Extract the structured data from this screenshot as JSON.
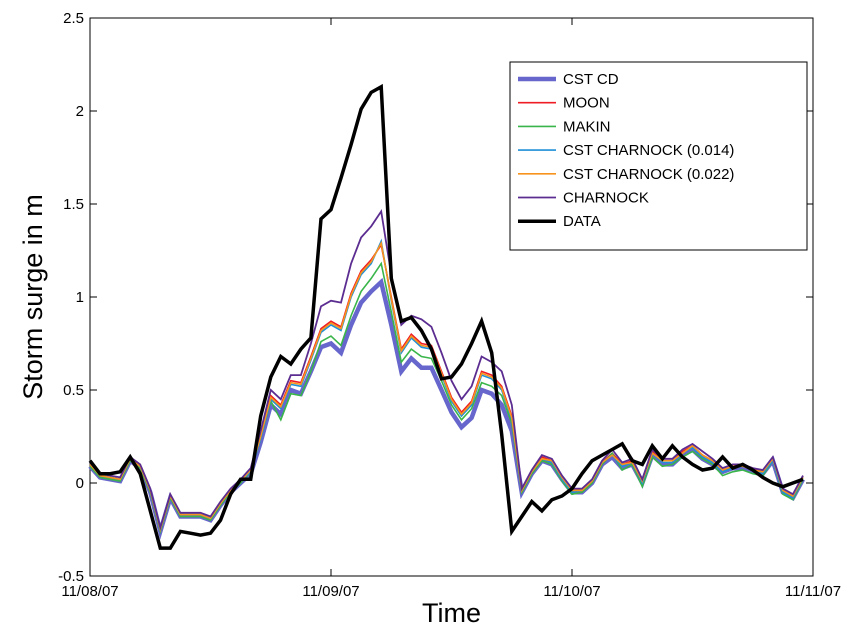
{
  "chart_data": {
    "type": "line",
    "title": "",
    "xlabel": "Time",
    "ylabel": "Storm surge in m",
    "x_ticks": [
      "11/08/07",
      "11/09/07",
      "11/10/07",
      "11/11/07"
    ],
    "y_ticks": [
      "-0.5",
      "0",
      "0.5",
      "1",
      "1.5",
      "2",
      "2.5"
    ],
    "xlim": [
      0,
      72
    ],
    "ylim": [
      -0.5,
      2.5
    ],
    "x_unit": "hours since 11/08/07 00:00",
    "grid": false,
    "legend_position": "top-right",
    "series": [
      {
        "name": "CST CD",
        "color": "#6666cc",
        "width": 4.5,
        "x": [
          0,
          1,
          2,
          3,
          4,
          5,
          6,
          7,
          8,
          9,
          10,
          11,
          12,
          13,
          14,
          15,
          16,
          17,
          18,
          19,
          20,
          21,
          22,
          23,
          24,
          25,
          26,
          27,
          28,
          29,
          30,
          31,
          32,
          33,
          34,
          35,
          36,
          37,
          38,
          39,
          40,
          41,
          42,
          43,
          44,
          45,
          46,
          47,
          48,
          49,
          50,
          51,
          52,
          53,
          54,
          55,
          56,
          57,
          58,
          59,
          60,
          61,
          62,
          63,
          64,
          65,
          66,
          67,
          68,
          69,
          70,
          71
        ],
        "values": [
          0.09,
          0.03,
          0.02,
          0.01,
          0.12,
          0.08,
          -0.05,
          -0.26,
          -0.08,
          -0.18,
          -0.18,
          -0.18,
          -0.2,
          -0.12,
          -0.05,
          0.0,
          0.05,
          0.22,
          0.42,
          0.37,
          0.5,
          0.48,
          0.6,
          0.73,
          0.75,
          0.7,
          0.85,
          0.97,
          1.03,
          1.08,
          0.85,
          0.6,
          0.67,
          0.62,
          0.62,
          0.5,
          0.38,
          0.3,
          0.35,
          0.5,
          0.48,
          0.42,
          0.28,
          -0.05,
          0.05,
          0.12,
          0.1,
          0.02,
          -0.05,
          -0.05,
          0.0,
          0.1,
          0.14,
          0.08,
          0.1,
          0.0,
          0.15,
          0.1,
          0.1,
          0.15,
          0.18,
          0.13,
          0.1,
          0.06,
          0.08,
          0.08,
          0.06,
          0.05,
          0.12,
          -0.05,
          -0.08,
          0.02
        ]
      },
      {
        "name": "MOON",
        "color": "#ee1c24",
        "width": 1.6,
        "x": [
          0,
          1,
          2,
          3,
          4,
          5,
          6,
          7,
          8,
          9,
          10,
          11,
          12,
          13,
          14,
          15,
          16,
          17,
          18,
          19,
          20,
          21,
          22,
          23,
          24,
          25,
          26,
          27,
          28,
          29,
          30,
          31,
          32,
          33,
          34,
          35,
          36,
          37,
          38,
          39,
          40,
          41,
          42,
          43,
          44,
          45,
          46,
          47,
          48,
          49,
          50,
          51,
          52,
          53,
          54,
          55,
          56,
          57,
          58,
          59,
          60,
          61,
          62,
          63,
          64,
          65,
          66,
          67,
          68,
          69,
          70,
          71
        ],
        "values": [
          0.1,
          0.04,
          0.03,
          0.02,
          0.13,
          0.09,
          -0.04,
          -0.25,
          -0.07,
          -0.17,
          -0.17,
          -0.17,
          -0.19,
          -0.11,
          -0.04,
          0.01,
          0.07,
          0.26,
          0.47,
          0.42,
          0.55,
          0.54,
          0.68,
          0.83,
          0.87,
          0.84,
          1.02,
          1.14,
          1.2,
          1.28,
          1.0,
          0.72,
          0.8,
          0.75,
          0.74,
          0.6,
          0.46,
          0.38,
          0.44,
          0.6,
          0.58,
          0.52,
          0.36,
          -0.04,
          0.06,
          0.14,
          0.12,
          0.03,
          -0.04,
          -0.04,
          0.01,
          0.11,
          0.16,
          0.1,
          0.12,
          0.01,
          0.17,
          0.12,
          0.12,
          0.17,
          0.2,
          0.15,
          0.12,
          0.07,
          0.09,
          0.1,
          0.08,
          0.06,
          0.13,
          -0.04,
          -0.07,
          0.03
        ]
      },
      {
        "name": "MAKIN",
        "color": "#39b54a",
        "width": 1.6,
        "x": [
          0,
          1,
          2,
          3,
          4,
          5,
          6,
          7,
          8,
          9,
          10,
          11,
          12,
          13,
          14,
          15,
          16,
          17,
          18,
          19,
          20,
          21,
          22,
          23,
          24,
          25,
          26,
          27,
          28,
          29,
          30,
          31,
          32,
          33,
          34,
          35,
          36,
          37,
          38,
          39,
          40,
          41,
          42,
          43,
          44,
          45,
          46,
          47,
          48,
          49,
          50,
          51,
          52,
          53,
          54,
          55,
          56,
          57,
          58,
          59,
          60,
          61,
          62,
          63,
          64,
          65,
          66,
          67,
          68,
          69,
          70,
          71
        ],
        "values": [
          0.09,
          0.03,
          0.02,
          0.01,
          0.12,
          0.08,
          -0.05,
          -0.26,
          -0.08,
          -0.18,
          -0.18,
          -0.18,
          -0.2,
          -0.12,
          -0.05,
          0.0,
          0.06,
          0.24,
          0.44,
          0.34,
          0.48,
          0.47,
          0.6,
          0.76,
          0.79,
          0.74,
          0.9,
          1.03,
          1.1,
          1.18,
          0.92,
          0.65,
          0.72,
          0.68,
          0.67,
          0.55,
          0.42,
          0.34,
          0.4,
          0.54,
          0.52,
          0.47,
          0.32,
          -0.05,
          0.05,
          0.12,
          0.1,
          0.01,
          -0.06,
          -0.05,
          0.0,
          0.1,
          0.16,
          0.07,
          0.1,
          -0.02,
          0.14,
          0.09,
          0.1,
          0.14,
          0.17,
          0.13,
          0.1,
          0.04,
          0.06,
          0.07,
          0.05,
          0.04,
          0.12,
          -0.06,
          -0.09,
          0.02
        ]
      },
      {
        "name": "CST CHARNOCK (0.014)",
        "color": "#1f8fd6",
        "width": 1.6,
        "x": [
          0,
          1,
          2,
          3,
          4,
          5,
          6,
          7,
          8,
          9,
          10,
          11,
          12,
          13,
          14,
          15,
          16,
          17,
          18,
          19,
          20,
          21,
          22,
          23,
          24,
          25,
          26,
          27,
          28,
          29,
          30,
          31,
          32,
          33,
          34,
          35,
          36,
          37,
          38,
          39,
          40,
          41,
          42,
          43,
          44,
          45,
          46,
          47,
          48,
          49,
          50,
          51,
          52,
          53,
          54,
          55,
          56,
          57,
          58,
          59,
          60,
          61,
          62,
          63,
          64,
          65,
          66,
          67,
          68,
          69,
          70,
          71
        ],
        "values": [
          0.1,
          0.04,
          0.03,
          0.02,
          0.13,
          0.09,
          -0.04,
          -0.25,
          -0.07,
          -0.17,
          -0.17,
          -0.17,
          -0.19,
          -0.11,
          -0.04,
          0.01,
          0.06,
          0.24,
          0.45,
          0.4,
          0.53,
          0.52,
          0.66,
          0.81,
          0.85,
          0.82,
          1.0,
          1.12,
          1.18,
          1.3,
          0.98,
          0.7,
          0.78,
          0.73,
          0.72,
          0.58,
          0.44,
          0.36,
          0.42,
          0.58,
          0.56,
          0.5,
          0.34,
          -0.04,
          0.06,
          0.13,
          0.11,
          0.02,
          -0.05,
          -0.04,
          0.01,
          0.11,
          0.15,
          0.09,
          0.11,
          0.0,
          0.16,
          0.11,
          0.11,
          0.16,
          0.19,
          0.14,
          0.11,
          0.06,
          0.08,
          0.09,
          0.07,
          0.05,
          0.12,
          -0.05,
          -0.08,
          0.03
        ]
      },
      {
        "name": "CST CHARNOCK (0.022)",
        "color": "#f7941d",
        "width": 1.6,
        "x": [
          0,
          1,
          2,
          3,
          4,
          5,
          6,
          7,
          8,
          9,
          10,
          11,
          12,
          13,
          14,
          15,
          16,
          17,
          18,
          19,
          20,
          21,
          22,
          23,
          24,
          25,
          26,
          27,
          28,
          29,
          30,
          31,
          32,
          33,
          34,
          35,
          36,
          37,
          38,
          39,
          40,
          41,
          42,
          43,
          44,
          45,
          46,
          47,
          48,
          49,
          50,
          51,
          52,
          53,
          54,
          55,
          56,
          57,
          58,
          59,
          60,
          61,
          62,
          63,
          64,
          65,
          66,
          67,
          68,
          69,
          70,
          71
        ],
        "values": [
          0.1,
          0.04,
          0.03,
          0.02,
          0.13,
          0.09,
          -0.04,
          -0.25,
          -0.07,
          -0.17,
          -0.17,
          -0.17,
          -0.19,
          -0.11,
          -0.04,
          0.01,
          0.07,
          0.25,
          0.46,
          0.41,
          0.54,
          0.53,
          0.67,
          0.82,
          0.86,
          0.83,
          1.01,
          1.13,
          1.19,
          1.29,
          0.99,
          0.71,
          0.79,
          0.74,
          0.73,
          0.59,
          0.45,
          0.37,
          0.43,
          0.59,
          0.57,
          0.51,
          0.35,
          -0.04,
          0.06,
          0.13,
          0.12,
          0.03,
          -0.04,
          -0.04,
          0.01,
          0.11,
          0.15,
          0.1,
          0.11,
          0.01,
          0.16,
          0.12,
          0.12,
          0.16,
          0.2,
          0.15,
          0.12,
          0.07,
          0.09,
          0.09,
          0.07,
          0.06,
          0.13,
          -0.04,
          -0.07,
          0.03
        ]
      },
      {
        "name": "CHARNOCK",
        "color": "#5c2d91",
        "width": 1.8,
        "x": [
          0,
          1,
          2,
          3,
          4,
          5,
          6,
          7,
          8,
          9,
          10,
          11,
          12,
          13,
          14,
          15,
          16,
          17,
          18,
          19,
          20,
          21,
          22,
          23,
          24,
          25,
          26,
          27,
          28,
          29,
          30,
          31,
          32,
          33,
          34,
          35,
          36,
          37,
          38,
          39,
          40,
          41,
          42,
          43,
          44,
          45,
          46,
          47,
          48,
          49,
          50,
          51,
          52,
          53,
          54,
          55,
          56,
          57,
          58,
          59,
          60,
          61,
          62,
          63,
          64,
          65,
          66,
          67,
          68,
          69,
          70,
          71
        ],
        "values": [
          0.11,
          0.05,
          0.04,
          0.03,
          0.14,
          0.1,
          -0.03,
          -0.24,
          -0.06,
          -0.16,
          -0.16,
          -0.16,
          -0.18,
          -0.1,
          -0.03,
          0.02,
          0.08,
          0.28,
          0.5,
          0.45,
          0.58,
          0.58,
          0.75,
          0.95,
          0.98,
          0.97,
          1.18,
          1.32,
          1.38,
          1.46,
          1.12,
          0.85,
          0.9,
          0.88,
          0.84,
          0.7,
          0.55,
          0.45,
          0.52,
          0.68,
          0.65,
          0.6,
          0.42,
          -0.03,
          0.07,
          0.15,
          0.13,
          0.04,
          -0.03,
          -0.03,
          0.02,
          0.12,
          0.18,
          0.11,
          0.13,
          0.02,
          0.18,
          0.13,
          0.13,
          0.18,
          0.21,
          0.17,
          0.13,
          0.08,
          0.1,
          0.1,
          0.08,
          0.07,
          0.14,
          -0.03,
          -0.06,
          0.04
        ]
      },
      {
        "name": "DATA",
        "color": "#000000",
        "width": 3.5,
        "x": [
          0,
          1,
          2,
          3,
          4,
          5,
          6,
          7,
          8,
          9,
          10,
          11,
          12,
          13,
          14,
          15,
          16,
          17,
          18,
          19,
          20,
          21,
          22,
          23,
          24,
          25,
          26,
          27,
          28,
          29,
          30,
          31,
          32,
          33,
          34,
          35,
          36,
          37,
          38,
          39,
          40,
          41,
          42,
          43,
          44,
          45,
          46,
          47,
          48,
          49,
          50,
          51,
          52,
          53,
          54,
          55,
          56,
          57,
          58,
          59,
          60,
          61,
          62,
          63,
          64,
          65,
          66,
          67,
          68,
          69,
          70,
          71
        ],
        "values": [
          0.12,
          0.05,
          0.05,
          0.06,
          0.14,
          0.05,
          -0.15,
          -0.35,
          -0.35,
          -0.26,
          -0.27,
          -0.28,
          -0.27,
          -0.2,
          -0.06,
          0.02,
          0.02,
          0.36,
          0.57,
          0.68,
          0.64,
          0.72,
          0.78,
          1.42,
          1.47,
          1.64,
          1.82,
          2.01,
          2.1,
          2.13,
          1.1,
          0.87,
          0.89,
          0.82,
          0.72,
          0.56,
          0.57,
          0.64,
          0.75,
          0.87,
          0.7,
          0.26,
          -0.26,
          -0.18,
          -0.1,
          -0.15,
          -0.09,
          -0.07,
          -0.03,
          0.05,
          0.12,
          0.15,
          0.18,
          0.21,
          0.12,
          0.1,
          0.2,
          0.13,
          0.2,
          0.14,
          0.1,
          0.07,
          0.08,
          0.14,
          0.08,
          0.1,
          0.07,
          0.03,
          0.0,
          -0.02,
          0.0,
          0.02
        ]
      }
    ]
  }
}
